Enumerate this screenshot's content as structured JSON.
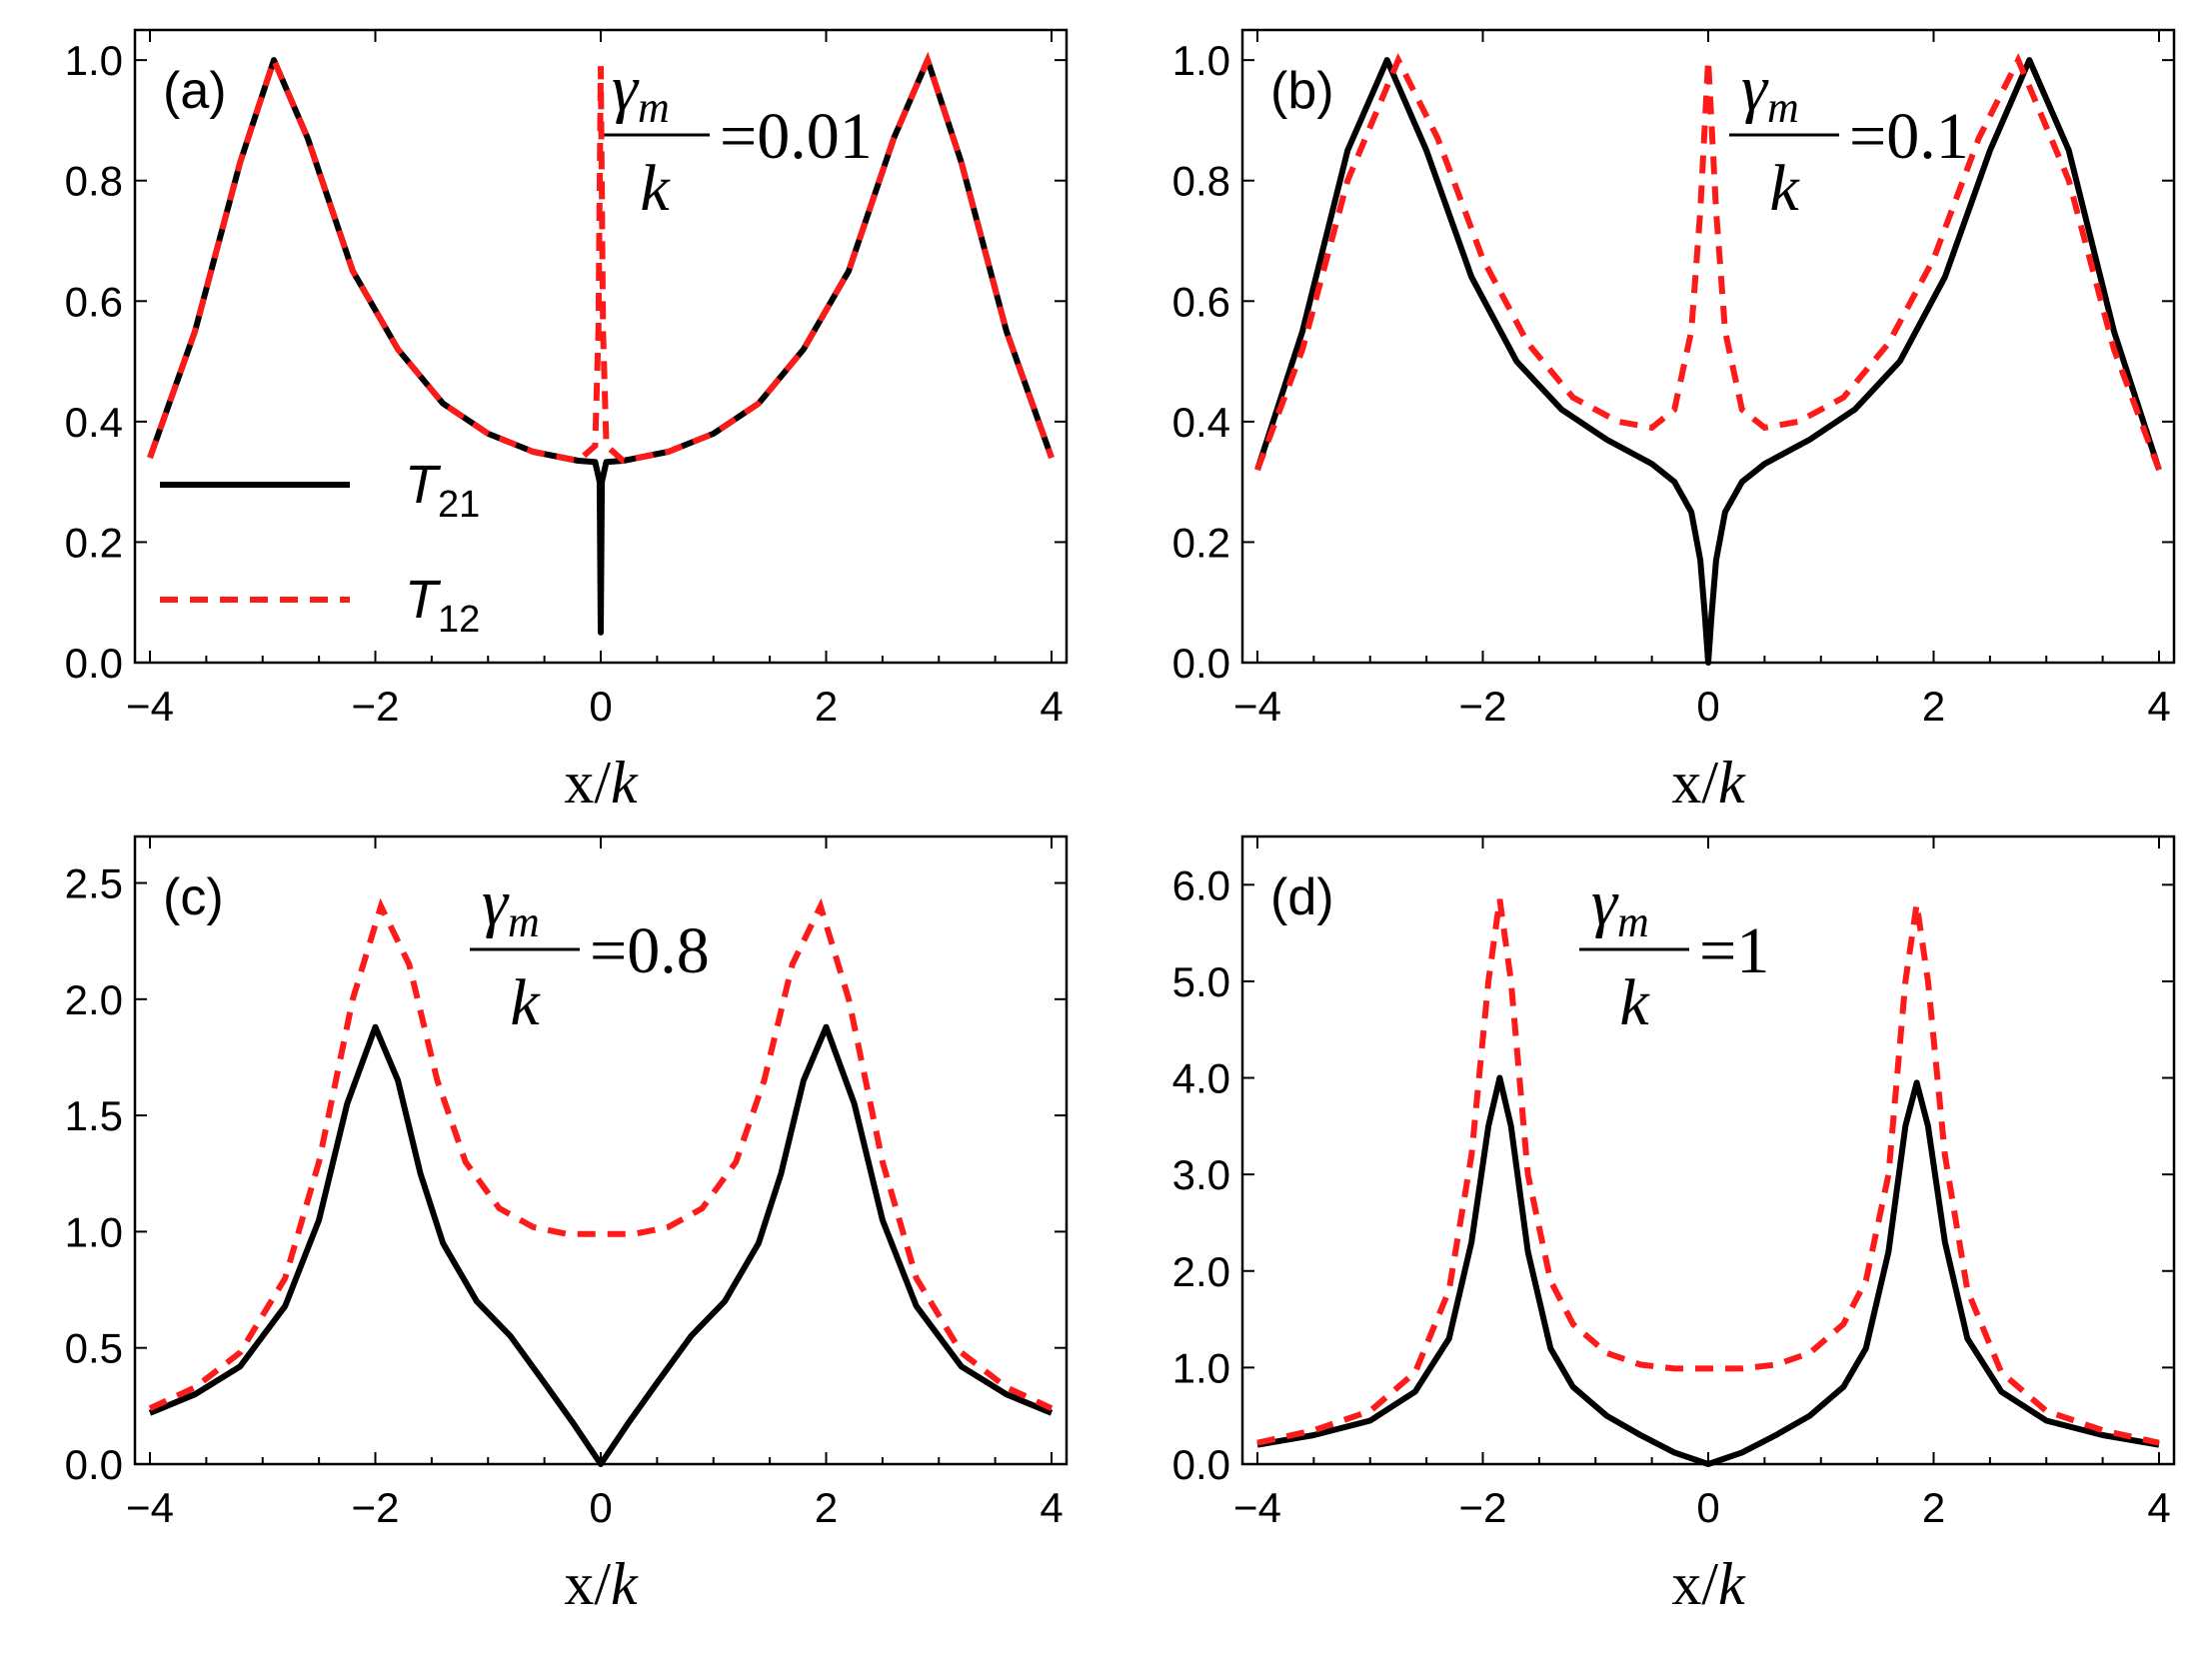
{
  "chart_data": [
    {
      "type": "line",
      "panel_label": "(a)",
      "param_symbol": "γ",
      "param_subscript": "m",
      "param_denominator": "k",
      "param_value": "=0.01",
      "xlabel": "x/k",
      "xlim": [
        -4,
        4
      ],
      "ylim": [
        0,
        1.05
      ],
      "xticks": [
        -4,
        -2,
        0,
        2,
        4
      ],
      "yticks": [
        0.0,
        0.2,
        0.4,
        0.6,
        0.8,
        1.0
      ],
      "ytick_labels": [
        "0.0",
        "0.2",
        "0.4",
        "0.6",
        "0.8",
        "1.0"
      ],
      "legend": true,
      "series": [
        {
          "name": "T21",
          "x": [
            -4,
            -3.6,
            -3.2,
            -2.9,
            -2.6,
            -2.2,
            -1.8,
            -1.4,
            -1.0,
            -0.6,
            -0.2,
            -0.05,
            -0.01,
            0.0,
            0.01,
            0.05,
            0.2,
            0.6,
            1.0,
            1.4,
            1.8,
            2.2,
            2.6,
            2.9,
            3.2,
            3.6,
            4
          ],
          "y": [
            0.34,
            0.55,
            0.83,
            1.0,
            0.87,
            0.65,
            0.52,
            0.43,
            0.38,
            0.35,
            0.335,
            0.333,
            0.3,
            0.05,
            0.3,
            0.333,
            0.335,
            0.35,
            0.38,
            0.43,
            0.52,
            0.65,
            0.87,
            1.0,
            0.83,
            0.55,
            0.34
          ]
        },
        {
          "name": "T12",
          "x": [
            -4,
            -3.6,
            -3.2,
            -2.9,
            -2.6,
            -2.2,
            -1.8,
            -1.4,
            -1.0,
            -0.6,
            -0.2,
            -0.05,
            -0.02,
            0.0,
            0.02,
            0.05,
            0.2,
            0.6,
            1.0,
            1.4,
            1.8,
            2.2,
            2.6,
            2.9,
            3.2,
            3.6,
            4
          ],
          "y": [
            0.34,
            0.55,
            0.83,
            1.0,
            0.87,
            0.65,
            0.52,
            0.43,
            0.38,
            0.35,
            0.335,
            0.36,
            0.55,
            0.99,
            0.55,
            0.36,
            0.335,
            0.35,
            0.38,
            0.43,
            0.52,
            0.65,
            0.87,
            1.0,
            0.83,
            0.55,
            0.34
          ]
        }
      ]
    },
    {
      "type": "line",
      "panel_label": "(b)",
      "param_symbol": "γ",
      "param_subscript": "m",
      "param_denominator": "k",
      "param_value": "=0.1",
      "xlabel": "x/k",
      "xlim": [
        -4,
        4
      ],
      "ylim": [
        0,
        1.05
      ],
      "xticks": [
        -4,
        -2,
        0,
        2,
        4
      ],
      "yticks": [
        0.0,
        0.2,
        0.4,
        0.6,
        0.8,
        1.0
      ],
      "ytick_labels": [
        "0.0",
        "0.2",
        "0.4",
        "0.6",
        "0.8",
        "1.0"
      ],
      "legend": false,
      "series": [
        {
          "name": "T21",
          "x": [
            -4,
            -3.6,
            -3.2,
            -2.85,
            -2.5,
            -2.1,
            -1.7,
            -1.3,
            -0.9,
            -0.5,
            -0.3,
            -0.15,
            -0.07,
            -0.03,
            0.0,
            0.03,
            0.07,
            0.15,
            0.3,
            0.5,
            0.9,
            1.3,
            1.7,
            2.1,
            2.5,
            2.85,
            3.2,
            3.6,
            4
          ],
          "y": [
            0.32,
            0.55,
            0.85,
            1.0,
            0.85,
            0.64,
            0.5,
            0.42,
            0.37,
            0.33,
            0.3,
            0.25,
            0.17,
            0.08,
            0.0,
            0.08,
            0.17,
            0.25,
            0.3,
            0.33,
            0.37,
            0.42,
            0.5,
            0.64,
            0.85,
            1.0,
            0.85,
            0.55,
            0.32
          ]
        },
        {
          "name": "T12",
          "x": [
            -4,
            -3.6,
            -3.2,
            -2.75,
            -2.4,
            -2.0,
            -1.6,
            -1.2,
            -0.8,
            -0.5,
            -0.3,
            -0.15,
            -0.07,
            0.0,
            0.07,
            0.15,
            0.3,
            0.5,
            0.8,
            1.2,
            1.6,
            2.0,
            2.4,
            2.75,
            3.2,
            3.6,
            4
          ],
          "y": [
            0.32,
            0.52,
            0.8,
            1.0,
            0.87,
            0.67,
            0.53,
            0.44,
            0.4,
            0.39,
            0.42,
            0.55,
            0.75,
            1.0,
            0.75,
            0.55,
            0.42,
            0.39,
            0.4,
            0.44,
            0.53,
            0.67,
            0.87,
            1.0,
            0.8,
            0.52,
            0.32
          ]
        }
      ]
    },
    {
      "type": "line",
      "panel_label": "(c)",
      "param_symbol": "γ",
      "param_subscript": "m",
      "param_denominator": "k",
      "param_value": "=0.8",
      "xlabel": "x/k",
      "xlim": [
        -4,
        4
      ],
      "ylim": [
        0,
        2.7
      ],
      "xticks": [
        -4,
        -2,
        0,
        2,
        4
      ],
      "yticks": [
        0.0,
        0.5,
        1.0,
        1.5,
        2.0,
        2.5
      ],
      "ytick_labels": [
        "0.0",
        "0.5",
        "1.0",
        "1.5",
        "2.0",
        "2.5"
      ],
      "legend": false,
      "series": [
        {
          "name": "T21",
          "x": [
            -4,
            -3.6,
            -3.2,
            -2.8,
            -2.5,
            -2.25,
            -2.0,
            -1.8,
            -1.6,
            -1.4,
            -1.1,
            -0.8,
            -0.5,
            -0.25,
            0.0,
            0.25,
            0.5,
            0.8,
            1.1,
            1.4,
            1.6,
            1.8,
            2.0,
            2.25,
            2.5,
            2.8,
            3.2,
            3.6,
            4
          ],
          "y": [
            0.22,
            0.3,
            0.42,
            0.68,
            1.05,
            1.55,
            1.88,
            1.65,
            1.25,
            0.95,
            0.7,
            0.55,
            0.35,
            0.18,
            0.0,
            0.18,
            0.35,
            0.55,
            0.7,
            0.95,
            1.25,
            1.65,
            1.88,
            1.55,
            1.05,
            0.68,
            0.42,
            0.3,
            0.22
          ]
        },
        {
          "name": "T12",
          "x": [
            -4,
            -3.6,
            -3.2,
            -2.8,
            -2.5,
            -2.2,
            -1.95,
            -1.7,
            -1.45,
            -1.2,
            -0.9,
            -0.6,
            -0.3,
            0.0,
            0.3,
            0.6,
            0.9,
            1.2,
            1.45,
            1.7,
            1.95,
            2.2,
            2.5,
            2.8,
            3.2,
            3.6,
            4
          ],
          "y": [
            0.24,
            0.33,
            0.48,
            0.8,
            1.3,
            2.0,
            2.4,
            2.15,
            1.65,
            1.3,
            1.1,
            1.02,
            0.99,
            0.99,
            0.99,
            1.02,
            1.1,
            1.3,
            1.65,
            2.15,
            2.4,
            2.0,
            1.3,
            0.8,
            0.48,
            0.33,
            0.24
          ]
        }
      ]
    },
    {
      "type": "line",
      "panel_label": "(d)",
      "param_symbol": "γ",
      "param_subscript": "m",
      "param_denominator": "k",
      "param_value": "=1",
      "xlabel": "x/k",
      "xlim": [
        -4,
        4
      ],
      "ylim": [
        0,
        6.5
      ],
      "xticks": [
        -4,
        -2,
        0,
        2,
        4
      ],
      "yticks": [
        0.0,
        1.0,
        2.0,
        3.0,
        4.0,
        5.0,
        6.0
      ],
      "ytick_labels": [
        "0.0",
        "1.0",
        "2.0",
        "3.0",
        "4.0",
        "5.0",
        "6.0"
      ],
      "legend": false,
      "series": [
        {
          "name": "T21",
          "x": [
            -4,
            -3.5,
            -3.0,
            -2.6,
            -2.3,
            -2.1,
            -1.95,
            -1.85,
            -1.75,
            -1.6,
            -1.4,
            -1.2,
            -0.9,
            -0.6,
            -0.3,
            0.0,
            0.3,
            0.6,
            0.9,
            1.2,
            1.4,
            1.6,
            1.75,
            1.85,
            1.95,
            2.1,
            2.3,
            2.6,
            3.0,
            3.5,
            4
          ],
          "y": [
            0.2,
            0.3,
            0.45,
            0.75,
            1.3,
            2.3,
            3.5,
            4.0,
            3.5,
            2.2,
            1.2,
            0.8,
            0.5,
            0.3,
            0.12,
            0.0,
            0.12,
            0.3,
            0.5,
            0.8,
            1.2,
            2.2,
            3.5,
            3.95,
            3.5,
            2.3,
            1.3,
            0.75,
            0.45,
            0.3,
            0.2
          ]
        },
        {
          "name": "T12",
          "x": [
            -4,
            -3.5,
            -3.0,
            -2.6,
            -2.3,
            -2.1,
            -1.95,
            -1.85,
            -1.75,
            -1.6,
            -1.4,
            -1.2,
            -0.9,
            -0.6,
            -0.3,
            0.0,
            0.3,
            0.6,
            0.9,
            1.2,
            1.4,
            1.6,
            1.75,
            1.85,
            1.95,
            2.1,
            2.3,
            2.6,
            3.0,
            3.5,
            4
          ],
          "y": [
            0.22,
            0.35,
            0.55,
            0.95,
            1.8,
            3.2,
            5.0,
            5.85,
            5.0,
            3.0,
            1.9,
            1.45,
            1.15,
            1.03,
            0.99,
            0.99,
            0.99,
            1.03,
            1.15,
            1.45,
            1.9,
            3.0,
            5.0,
            5.8,
            5.0,
            3.2,
            1.8,
            0.95,
            0.55,
            0.35,
            0.22
          ]
        }
      ]
    }
  ],
  "legend_entries": [
    {
      "symbol": "T",
      "subscript": "21",
      "style": "solid",
      "color": "#000000"
    },
    {
      "symbol": "T",
      "subscript": "12",
      "style": "dashed",
      "color": "#ff1a1a"
    }
  ],
  "colors": {
    "T21": "#000000",
    "T12": "#ff1a1a"
  }
}
